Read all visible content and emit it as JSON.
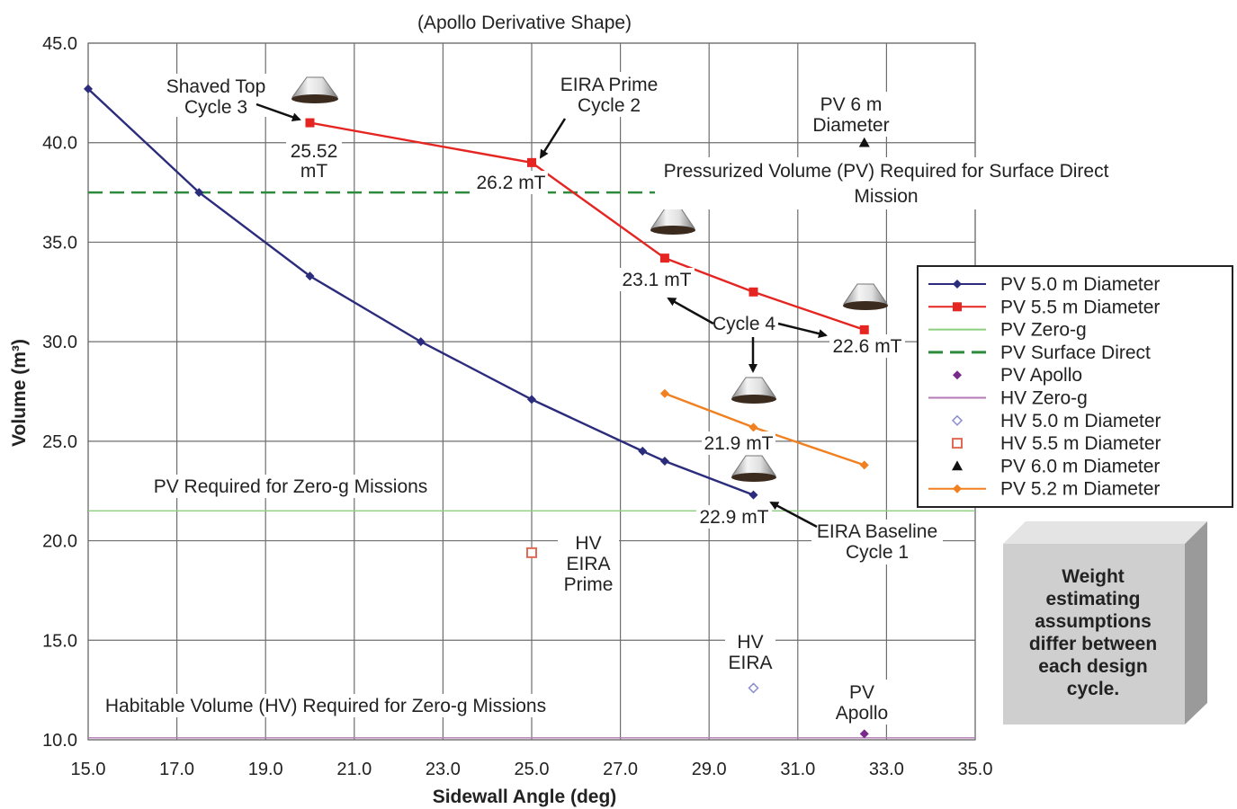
{
  "chart_data": {
    "type": "line",
    "title": "(Apollo Derivative Shape)",
    "xlabel": "Sidewall Angle (deg)",
    "ylabel": "Volume (m³)",
    "xlim": [
      15,
      35
    ],
    "ylim": [
      10,
      45
    ],
    "x_ticks": [
      "15.0",
      "17.0",
      "19.0",
      "21.0",
      "23.0",
      "25.0",
      "27.0",
      "29.0",
      "31.0",
      "33.0",
      "35.0"
    ],
    "y_ticks": [
      "10.0",
      "15.0",
      "20.0",
      "25.0",
      "30.0",
      "35.0",
      "40.0",
      "45.0"
    ],
    "grid": true,
    "legend_position": "right",
    "series": [
      {
        "name": "PV 5.0 m Diameter",
        "color": "#2b2c7c",
        "marker": "diamond",
        "points": [
          [
            15.0,
            42.7
          ],
          [
            17.5,
            37.5
          ],
          [
            20.0,
            33.3
          ],
          [
            22.5,
            30.0
          ],
          [
            25.0,
            27.1
          ],
          [
            27.5,
            24.5
          ],
          [
            28.0,
            24.0
          ],
          [
            30.0,
            22.3
          ]
        ]
      },
      {
        "name": "PV 5.5 m Diameter",
        "color": "#e52521",
        "marker": "square",
        "points": [
          [
            20.0,
            41.0
          ],
          [
            25.0,
            39.0
          ],
          [
            28.0,
            34.2
          ],
          [
            30.0,
            32.5
          ],
          [
            32.5,
            30.6
          ]
        ]
      },
      {
        "name": "PV Zero-g",
        "color": "#8ccf7e",
        "marker": "none",
        "y": 21.5
      },
      {
        "name": "PV Surface Direct",
        "color": "#2e8b3e",
        "marker": "none",
        "dashed": true,
        "y": 37.5
      },
      {
        "name": "PV Apollo",
        "color": "#7a2a8a",
        "marker": "diamond",
        "points": [
          [
            32.5,
            10.3
          ]
        ]
      },
      {
        "name": "HV Zero-g",
        "color": "#b57ab5",
        "marker": "none",
        "y": 10.1
      },
      {
        "name": "HV 5.0 m Diameter",
        "color": "#8a8fd0",
        "marker": "open-diamond",
        "points": [
          [
            30.0,
            12.6
          ]
        ]
      },
      {
        "name": "HV 5.5 m Diameter",
        "color": "#e06a55",
        "marker": "open-square",
        "points": [
          [
            25.0,
            19.4
          ]
        ]
      },
      {
        "name": "PV 6.0 m Diameter",
        "color": "#111111",
        "marker": "triangle",
        "points": [
          [
            32.5,
            40.0
          ]
        ]
      },
      {
        "name": "PV 5.2 m Diameter",
        "color": "#f08020",
        "marker": "diamond",
        "points": [
          [
            28.0,
            27.4
          ],
          [
            30.0,
            25.7
          ],
          [
            32.5,
            23.8
          ]
        ]
      }
    ]
  },
  "annotations": {
    "shaved_top_1": "Shaved Top",
    "shaved_top_2": "Cycle 3",
    "mass_2552_1": "25.52",
    "mass_2552_2": "mT",
    "eira_prime_1": "EIRA Prime",
    "eira_prime_2": "Cycle 2",
    "mass_262": "26.2 mT",
    "pv6_1": "PV 6 m",
    "pv6_2": "Diameter",
    "pv_surface_1": "Pressurized Volume (PV) Required for Surface Direct",
    "pv_surface_2": "Mission",
    "mass_231": "23.1 mT",
    "cycle4": "Cycle 4",
    "mass_226": "22.6 mT",
    "mass_219": "21.9 mT",
    "mass_229": "22.9 mT",
    "eira_baseline_1": "EIRA Baseline",
    "eira_baseline_2": "Cycle 1",
    "pv_zero_g": "PV Required for Zero-g Missions",
    "hv_prime_1": "HV",
    "hv_prime_2": "EIRA",
    "hv_prime_3": "Prime",
    "hv_eira_1": "HV",
    "hv_eira_2": "EIRA",
    "pv_apollo_1": "PV",
    "pv_apollo_2": "Apollo",
    "hv_zero_g": "Habitable Volume (HV) Required for Zero-g Missions"
  },
  "note_box": {
    "lines": [
      "Weight",
      "estimating",
      "assumptions",
      "differ between",
      "each design",
      "cycle."
    ]
  }
}
